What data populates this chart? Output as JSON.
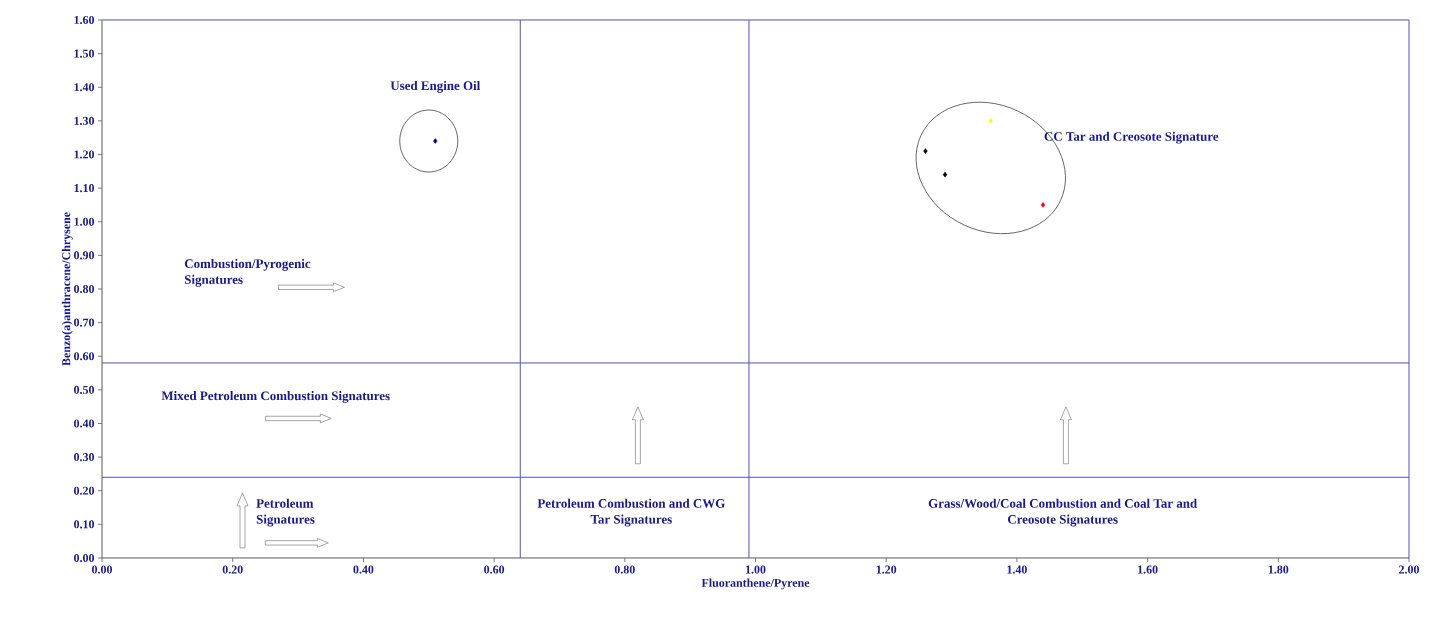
{
  "chart_data": {
    "type": "scatter",
    "xlabel": "Fluoranthene/Pyrene",
    "ylabel": "Benzo(a)anthracene/Chrysene",
    "xlim": [
      0,
      2
    ],
    "ylim": [
      0,
      1.6
    ],
    "xticks": [
      {
        "value": 0,
        "label": "0.00"
      },
      {
        "value": 0.2,
        "label": "0.20"
      },
      {
        "value": 0.4,
        "label": "0.40"
      },
      {
        "value": 0.6,
        "label": "0.60"
      },
      {
        "value": 0.8,
        "label": "0.80"
      },
      {
        "value": 1,
        "label": "1.00"
      },
      {
        "value": 1.2,
        "label": "1.20"
      },
      {
        "value": 1.4,
        "label": "1.40"
      },
      {
        "value": 1.6,
        "label": "1.60"
      },
      {
        "value": 1.8,
        "label": "1.80"
      },
      {
        "value": 2,
        "label": "2.00"
      }
    ],
    "yticks": [
      {
        "value": 0,
        "label": "0.00"
      },
      {
        "value": 0.1,
        "label": "0.10"
      },
      {
        "value": 0.2,
        "label": "0.20"
      },
      {
        "value": 0.3,
        "label": "0.30"
      },
      {
        "value": 0.4,
        "label": "0.40"
      },
      {
        "value": 0.5,
        "label": "0.50"
      },
      {
        "value": 0.6,
        "label": "0.60"
      },
      {
        "value": 0.7,
        "label": "0.70"
      },
      {
        "value": 0.8,
        "label": "0.80"
      },
      {
        "value": 0.9,
        "label": "0.90"
      },
      {
        "value": 1.0,
        "label": "1.00"
      },
      {
        "value": 1.1,
        "label": "1.10"
      },
      {
        "value": 1.2,
        "label": "1.20"
      },
      {
        "value": 1.3,
        "label": "1.30"
      },
      {
        "value": 1.4,
        "label": "1.40"
      },
      {
        "value": 1.5,
        "label": "1.50"
      },
      {
        "value": 1.6,
        "label": "1.60"
      }
    ],
    "marker": "diamond",
    "series": [
      {
        "color": "#00008b",
        "x": [
          0.51
        ],
        "values": [
          1.24
        ]
      },
      {
        "color": "#000000",
        "x": [
          1.26,
          1.29
        ],
        "values": [
          1.21,
          1.14
        ]
      },
      {
        "color": "#ffff00",
        "x": [
          1.36
        ],
        "values": [
          1.3
        ]
      },
      {
        "color": "#ff0000",
        "x": [
          1.44
        ],
        "values": [
          1.05
        ]
      }
    ],
    "ref_lines": [
      {
        "axis": "x",
        "value": 0.64,
        "color": "#5050b4"
      },
      {
        "axis": "x",
        "value": 0.99,
        "color": "#5050b4"
      },
      {
        "axis": "y",
        "value": 0.58,
        "color": "#5050b4"
      },
      {
        "axis": "y",
        "value": 0.24,
        "color": "#5050b4"
      }
    ],
    "annotations": [
      "Used Engine Oil",
      "CC Tar and Creosote Signature",
      "Combustion/Pyrogenic Signatures",
      "Mixed Petroleum Combustion Signatures",
      "Petroleum Signatures",
      "Petroleum Combustion and CWG Tar Signatures",
      "Grass/Wood/Coal Combustion and Coal Tar and Creosote Signatures"
    ]
  }
}
